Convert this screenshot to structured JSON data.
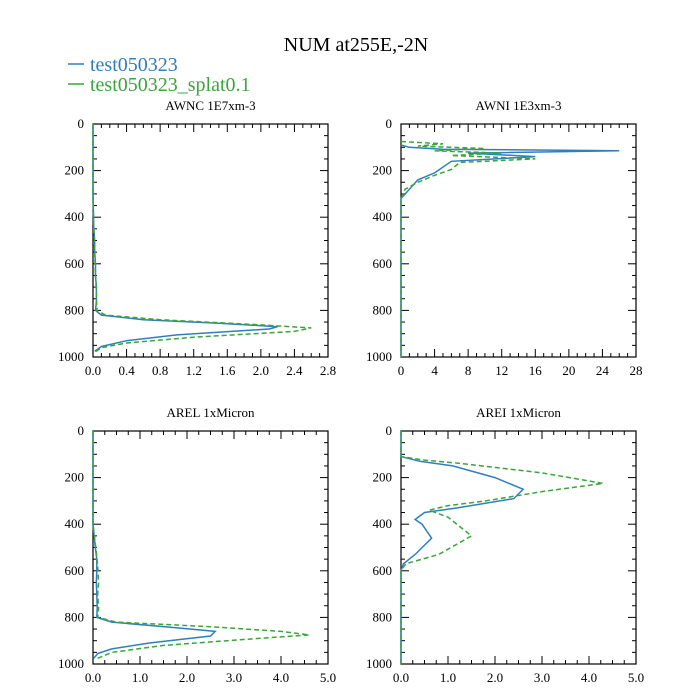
{
  "figure": {
    "title": "NUM at255E,-2N"
  },
  "legend": [
    {
      "name": "test050323",
      "color": "#2f7fbf",
      "dash": "solid"
    },
    {
      "name": "test050323_splat0.1",
      "color": "#3aa53a",
      "dash": "dashed"
    }
  ],
  "chart_data": [
    {
      "type": "line",
      "title": "AWNC  1E7xm-3",
      "xlim": [
        0,
        2.8
      ],
      "ylim": [
        1000,
        0
      ],
      "xticks": [
        "0.0",
        "0.4",
        "0.8",
        "1.2",
        "1.6",
        "2.0",
        "2.4",
        "2.8"
      ],
      "xtick_values": [
        0,
        0.4,
        0.8,
        1.2,
        1.6,
        2.0,
        2.4,
        2.8
      ],
      "yticks": [
        "0",
        "200",
        "400",
        "600",
        "800",
        "1000"
      ],
      "ytick_values": [
        0,
        200,
        400,
        600,
        800,
        1000
      ],
      "series": [
        {
          "name": "test050323",
          "color": "#2f7fbf",
          "dash": "solid",
          "x": [
            0,
            0,
            0.01,
            0.02,
            0.02,
            0.03,
            0.03,
            0.04,
            0.04,
            0.03,
            0.1,
            0.6,
            1.5,
            2.2,
            2.1,
            1.0,
            0.4,
            0.1,
            0.02
          ],
          "y": [
            0,
            300,
            450,
            500,
            550,
            600,
            650,
            700,
            760,
            800,
            820,
            840,
            855,
            870,
            880,
            905,
            930,
            955,
            975
          ]
        },
        {
          "name": "test050323_splat0.1",
          "color": "#3aa53a",
          "dash": "dashed",
          "x": [
            0,
            0,
            0.01,
            0.02,
            0.03,
            0.04,
            0.04,
            0.05,
            0.04,
            0.15,
            0.8,
            1.9,
            2.6,
            2.4,
            1.2,
            0.4,
            0.1,
            0.02
          ],
          "y": [
            0,
            300,
            450,
            550,
            650,
            720,
            760,
            790,
            800,
            820,
            840,
            860,
            875,
            890,
            915,
            940,
            960,
            980
          ]
        }
      ]
    },
    {
      "type": "line",
      "title": "AWNI  1E3xm-3",
      "xlim": [
        0,
        28
      ],
      "ylim": [
        1000,
        0
      ],
      "xticks": [
        "0",
        "4",
        "8",
        "12",
        "16",
        "20",
        "24",
        "28"
      ],
      "xtick_values": [
        0,
        4,
        8,
        12,
        16,
        20,
        24,
        28
      ],
      "yticks": [
        "0",
        "200",
        "400",
        "600",
        "800",
        "1000"
      ],
      "ytick_values": [
        0,
        200,
        400,
        600,
        800,
        1000
      ],
      "series": [
        {
          "name": "test050323",
          "color": "#2f7fbf",
          "dash": "solid",
          "x": [
            0,
            1,
            5,
            26,
            8,
            16,
            6,
            4,
            2,
            1,
            0,
            0
          ],
          "y": [
            90,
            100,
            108,
            115,
            125,
            140,
            160,
            210,
            240,
            280,
            320,
            1000
          ]
        },
        {
          "name": "test050323_splat0.1",
          "color": "#3aa53a",
          "dash": "dashed",
          "x": [
            0,
            5,
            2,
            10,
            4,
            12,
            6,
            16,
            7,
            6,
            4,
            2,
            0.5,
            0,
            0
          ],
          "y": [
            75,
            85,
            95,
            105,
            115,
            125,
            135,
            150,
            165,
            195,
            220,
            250,
            280,
            320,
            1000
          ]
        }
      ]
    },
    {
      "type": "line",
      "title": "AREL  1xMicron",
      "xlim": [
        0,
        5
      ],
      "ylim": [
        1000,
        0
      ],
      "xticks": [
        "0.0",
        "1.0",
        "2.0",
        "3.0",
        "4.0",
        "5.0"
      ],
      "xtick_values": [
        0,
        1,
        2,
        3,
        4,
        5
      ],
      "yticks": [
        "0",
        "200",
        "400",
        "600",
        "800",
        "1000"
      ],
      "ytick_values": [
        0,
        200,
        400,
        600,
        800,
        1000
      ],
      "series": [
        {
          "name": "test050323",
          "color": "#2f7fbf",
          "dash": "solid",
          "x": [
            0,
            0,
            0.05,
            0.08,
            0.08,
            0.07,
            0.08,
            0.09,
            0.08,
            0.4,
            1.8,
            2.6,
            2.5,
            1.2,
            0.4,
            0.1,
            0.02
          ],
          "y": [
            0,
            400,
            500,
            550,
            600,
            650,
            700,
            760,
            800,
            820,
            845,
            860,
            880,
            910,
            935,
            955,
            975
          ]
        },
        {
          "name": "test050323_splat0.1",
          "color": "#3aa53a",
          "dash": "dashed",
          "x": [
            0,
            0,
            0.06,
            0.1,
            0.12,
            0.1,
            0.12,
            0.1,
            0.5,
            2.5,
            4.0,
            4.6,
            3.2,
            1.5,
            0.4,
            0.05
          ],
          "y": [
            0,
            400,
            500,
            580,
            650,
            700,
            760,
            800,
            820,
            840,
            860,
            875,
            895,
            920,
            950,
            980
          ]
        }
      ]
    },
    {
      "type": "line",
      "title": "AREI  1xMicron",
      "xlim": [
        0,
        5
      ],
      "ylim": [
        1000,
        0
      ],
      "xticks": [
        "0.0",
        "1.0",
        "2.0",
        "3.0",
        "4.0",
        "5.0"
      ],
      "xtick_values": [
        0,
        1,
        2,
        3,
        4,
        5
      ],
      "yticks": [
        "0",
        "200",
        "400",
        "600",
        "800",
        "1000"
      ],
      "ytick_values": [
        0,
        200,
        400,
        600,
        800,
        1000
      ],
      "series": [
        {
          "name": "test050323",
          "color": "#2f7fbf",
          "dash": "solid",
          "x": [
            0,
            0,
            0.4,
            1.1,
            2.0,
            2.6,
            2.4,
            1.2,
            0.5,
            0.3,
            0.45,
            0.65,
            0.3,
            0.05,
            0,
            0
          ],
          "y": [
            0,
            110,
            130,
            150,
            200,
            250,
            290,
            330,
            350,
            380,
            400,
            460,
            530,
            570,
            600,
            1000
          ]
        },
        {
          "name": "test050323_splat0.1",
          "color": "#3aa53a",
          "dash": "dashed",
          "x": [
            0,
            0,
            0.5,
            1.3,
            3.0,
            4.3,
            3.0,
            1.8,
            1.0,
            0.6,
            1.0,
            1.5,
            0.8,
            0.1,
            0,
            0
          ],
          "y": [
            0,
            110,
            125,
            140,
            180,
            225,
            260,
            300,
            320,
            340,
            370,
            450,
            530,
            570,
            600,
            1000
          ]
        }
      ]
    }
  ]
}
